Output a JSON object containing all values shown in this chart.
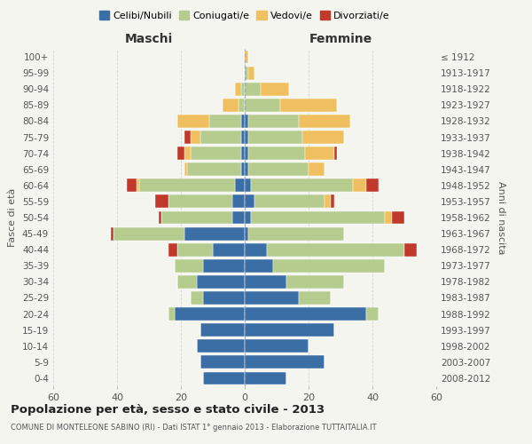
{
  "age_groups": [
    "0-4",
    "5-9",
    "10-14",
    "15-19",
    "20-24",
    "25-29",
    "30-34",
    "35-39",
    "40-44",
    "45-49",
    "50-54",
    "55-59",
    "60-64",
    "65-69",
    "70-74",
    "75-79",
    "80-84",
    "85-89",
    "90-94",
    "95-99",
    "100+"
  ],
  "birth_years": [
    "2008-2012",
    "2003-2007",
    "1998-2002",
    "1993-1997",
    "1988-1992",
    "1983-1987",
    "1978-1982",
    "1973-1977",
    "1968-1972",
    "1963-1967",
    "1958-1962",
    "1953-1957",
    "1948-1952",
    "1943-1947",
    "1938-1942",
    "1933-1937",
    "1928-1932",
    "1923-1927",
    "1918-1922",
    "1913-1917",
    "≤ 1912"
  ],
  "males": {
    "celibe": [
      13,
      14,
      15,
      14,
      22,
      13,
      15,
      13,
      10,
      19,
      4,
      4,
      3,
      1,
      1,
      1,
      1,
      0,
      0,
      0,
      0
    ],
    "coniugato": [
      0,
      0,
      0,
      0,
      2,
      4,
      6,
      9,
      11,
      22,
      22,
      20,
      30,
      17,
      16,
      13,
      10,
      2,
      1,
      0,
      0
    ],
    "vedovo": [
      0,
      0,
      0,
      0,
      0,
      0,
      0,
      0,
      0,
      0,
      0,
      0,
      1,
      1,
      2,
      3,
      10,
      5,
      2,
      0,
      0
    ],
    "divorziato": [
      0,
      0,
      0,
      0,
      0,
      0,
      0,
      0,
      3,
      1,
      1,
      4,
      3,
      0,
      2,
      2,
      0,
      0,
      0,
      0,
      0
    ]
  },
  "females": {
    "nubile": [
      13,
      25,
      20,
      28,
      38,
      17,
      13,
      9,
      7,
      1,
      2,
      3,
      2,
      1,
      1,
      1,
      1,
      0,
      0,
      0,
      0
    ],
    "coniugata": [
      0,
      0,
      0,
      0,
      4,
      10,
      18,
      35,
      43,
      30,
      42,
      22,
      32,
      19,
      18,
      17,
      16,
      11,
      5,
      1,
      0
    ],
    "vedova": [
      0,
      0,
      0,
      0,
      0,
      0,
      0,
      0,
      0,
      0,
      2,
      2,
      4,
      5,
      9,
      13,
      16,
      18,
      9,
      2,
      1
    ],
    "divorziata": [
      0,
      0,
      0,
      0,
      0,
      0,
      0,
      0,
      4,
      0,
      4,
      1,
      4,
      0,
      1,
      0,
      0,
      0,
      0,
      0,
      0
    ]
  },
  "color_celibe": "#3b6ea5",
  "color_coniugato": "#b5cc8e",
  "color_vedovo": "#f0c060",
  "color_divorziato": "#c0392b",
  "xlim": 60,
  "title": "Popolazione per età, sesso e stato civile - 2013",
  "subtitle": "COMUNE DI MONTELEONE SABINO (RI) - Dati ISTAT 1° gennaio 2013 - Elaborazione TUTTAITALIA.IT",
  "ylabel": "Fasce di età",
  "ylabel_right": "Anni di nascita",
  "label_maschi": "Maschi",
  "label_femmine": "Femmine",
  "legend_celibe": "Celibi/Nubili",
  "legend_coniugato": "Coniugati/e",
  "legend_vedovo": "Vedovi/e",
  "legend_divorziato": "Divorziati/e",
  "bg_color": "#f5f5f0"
}
